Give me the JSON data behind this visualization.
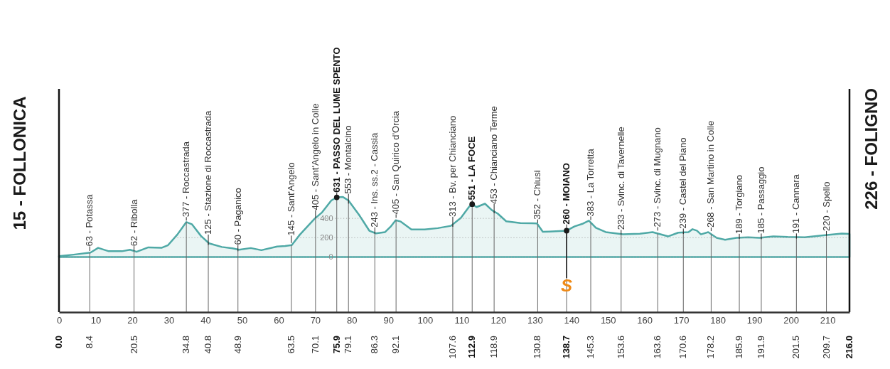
{
  "chart_data": {
    "type": "area",
    "xlim": [
      0,
      216
    ],
    "ylim": [
      -570,
      1740
    ],
    "xticks": [
      0,
      10,
      20,
      30,
      40,
      50,
      60,
      70,
      80,
      90,
      100,
      110,
      120,
      130,
      140,
      150,
      160,
      170,
      180,
      190,
      200,
      210
    ],
    "yticks": [
      0,
      200,
      400
    ],
    "grid": "y",
    "series": [
      {
        "color": "#4fa9a6",
        "x": [
          0,
          4,
          8.6,
          10.7,
          13.6,
          17.2,
          19.4,
          21.2,
          24.4,
          28.0,
          29.8,
          32.3,
          34.8,
          36.3,
          38.8,
          41.0,
          44.5,
          47.4,
          49.2,
          52.4,
          55.3,
          59.6,
          61.8,
          63.6,
          65.8,
          69.8,
          71.9,
          74.4,
          75.9,
          77.6,
          79.1,
          82.0,
          84.8,
          86.6,
          89.1,
          90.6,
          92.0,
          93.4,
          96.3,
          99.9,
          103.5,
          107.1,
          109.8,
          112.1,
          112.9,
          114.1,
          116.4,
          118.3,
          119.9,
          122.2,
          126.1,
          129.2,
          130.6,
          132.2,
          133.9,
          138.7,
          140.9,
          143.2,
          144.8,
          146.7,
          149.4,
          154.1,
          158.7,
          162.2,
          166.5,
          169.2,
          172.0,
          173.1,
          174.3,
          175.4,
          177.4,
          179.7,
          182.0,
          185.1,
          188.3,
          191.4,
          195.2,
          199.1,
          203.8,
          208.4,
          213.9,
          216
        ],
        "values": [
          10,
          25,
          46,
          95,
          60,
          60,
          76,
          54,
          100,
          95,
          123,
          231,
          362,
          340,
          218,
          142,
          104,
          90,
          76,
          93,
          71,
          109,
          114,
          123,
          231,
          395,
          463,
          585,
          618,
          621,
          585,
          436,
          272,
          245,
          258,
          313,
          381,
          367,
          286,
          286,
          299,
          323,
          405,
          523,
          547,
          517,
          552,
          485,
          449,
          370,
          352,
          350,
          348,
          262,
          264,
          273,
          317,
          346,
          376,
          302,
          258,
          235,
          241,
          258,
          214,
          252,
          258,
          288,
          273,
          235,
          258,
          199,
          179,
          199,
          205,
          199,
          214,
          208,
          205,
          223,
          243,
          240
        ]
      },
      {
        "type": "scatter",
        "color": "#1a1a1a",
        "marker": "circle",
        "x": [
          75.9,
          112.9,
          138.7
        ],
        "values": [
          618,
          547,
          273
        ]
      }
    ],
    "ref_lines": [
      {
        "axis": "x",
        "value": 0,
        "label": "0.0"
      },
      {
        "axis": "x",
        "value": 8.4,
        "label": "8.4"
      },
      {
        "axis": "x",
        "value": 20.5,
        "label": "20.5"
      },
      {
        "axis": "x",
        "value": 34.8,
        "label": "34.8"
      },
      {
        "axis": "x",
        "value": 40.8,
        "label": "40.8"
      },
      {
        "axis": "x",
        "value": 48.9,
        "label": "48.9"
      },
      {
        "axis": "x",
        "value": 63.5,
        "label": "63.5"
      },
      {
        "axis": "x",
        "value": 70.1,
        "label": "70.1"
      },
      {
        "axis": "x",
        "value": 75.9,
        "label": "75.9"
      },
      {
        "axis": "x",
        "value": 79.1,
        "label": "79.1"
      },
      {
        "axis": "x",
        "value": 86.3,
        "label": "86.3"
      },
      {
        "axis": "x",
        "value": 92.1,
        "label": "92.1"
      },
      {
        "axis": "x",
        "value": 107.6,
        "label": "107.6"
      },
      {
        "axis": "x",
        "value": 112.9,
        "label": "112.9"
      },
      {
        "axis": "x",
        "value": 118.9,
        "label": "118.9"
      },
      {
        "axis": "x",
        "value": 130.8,
        "label": "130.8"
      },
      {
        "axis": "x",
        "value": 138.7,
        "label": "138.7"
      },
      {
        "axis": "x",
        "value": 145.3,
        "label": "145.3"
      },
      {
        "axis": "x",
        "value": 153.6,
        "label": "153.6"
      },
      {
        "axis": "x",
        "value": 163.6,
        "label": "163.6"
      },
      {
        "axis": "x",
        "value": 170.6,
        "label": "170.6"
      },
      {
        "axis": "x",
        "value": 178.2,
        "label": "178.2"
      },
      {
        "axis": "x",
        "value": 185.9,
        "label": "185.9"
      },
      {
        "axis": "x",
        "value": 191.9,
        "label": "191.9"
      },
      {
        "axis": "x",
        "value": 201.5,
        "label": "201.5"
      },
      {
        "axis": "x",
        "value": 209.7,
        "label": "209.7"
      },
      {
        "axis": "x",
        "value": 216,
        "label": "216.0"
      }
    ],
    "annotations": [
      {
        "text": "15 - FOLLONICA",
        "x": 0,
        "y": 15
      },
      {
        "text": "63 - Potassa",
        "x": 8.4,
        "y": 63
      },
      {
        "text": "62 - Ribolla",
        "x": 20.5,
        "y": 62
      },
      {
        "text": "377 - Roccastrada",
        "x": 34.8,
        "y": 377
      },
      {
        "text": "125 - Stazione di Roccastrada",
        "x": 40.8,
        "y": 125
      },
      {
        "text": "60 - Paganico",
        "x": 48.9,
        "y": 60
      },
      {
        "text": "145 - Sant'Angelo",
        "x": 63.5,
        "y": 145
      },
      {
        "text": "405 - Sant'Angelo in Colle",
        "x": 70.1,
        "y": 405
      },
      {
        "text": "631 - PASSO DEL LUME SPENTO",
        "x": 75.9,
        "y": 631
      },
      {
        "text": "553 - Montalcino",
        "x": 79.1,
        "y": 553
      },
      {
        "text": "243 - Ins. ss.2 - Cassia",
        "x": 86.3,
        "y": 243
      },
      {
        "text": "405 - San Quirico d'Orcia",
        "x": 92.1,
        "y": 405
      },
      {
        "text": "313 - Bv. per Chianciano",
        "x": 107.6,
        "y": 313
      },
      {
        "text": "551 - LA FOCE",
        "x": 112.9,
        "y": 551
      },
      {
        "text": "453 - Chianciano Terme",
        "x": 118.9,
        "y": 453
      },
      {
        "text": "352 - Chiusi",
        "x": 130.8,
        "y": 352
      },
      {
        "text": "260 - MOIANO",
        "x": 138.7,
        "y": 260
      },
      {
        "text": "383 - La Torretta",
        "x": 145.3,
        "y": 383
      },
      {
        "text": "233 - Svinc. di Tavernelle",
        "x": 153.6,
        "y": 233
      },
      {
        "text": "273 - Svinc. di Mugnano",
        "x": 163.6,
        "y": 273
      },
      {
        "text": "239 - Castel del Piano",
        "x": 170.6,
        "y": 239
      },
      {
        "text": "268 - San Martino in Colle",
        "x": 178.2,
        "y": 268
      },
      {
        "text": "189 - Torgiano",
        "x": 185.9,
        "y": 189
      },
      {
        "text": "185 - Passaggio",
        "x": 191.9,
        "y": 185
      },
      {
        "text": "191 - Cannara",
        "x": 201.5,
        "y": 191
      },
      {
        "text": "220 - Spello",
        "x": 209.7,
        "y": 220
      },
      {
        "text": "226 - FOLIGNO",
        "x": 216,
        "y": 226
      },
      {
        "text": "S",
        "x": 138.7,
        "y": 273
      }
    ]
  }
}
